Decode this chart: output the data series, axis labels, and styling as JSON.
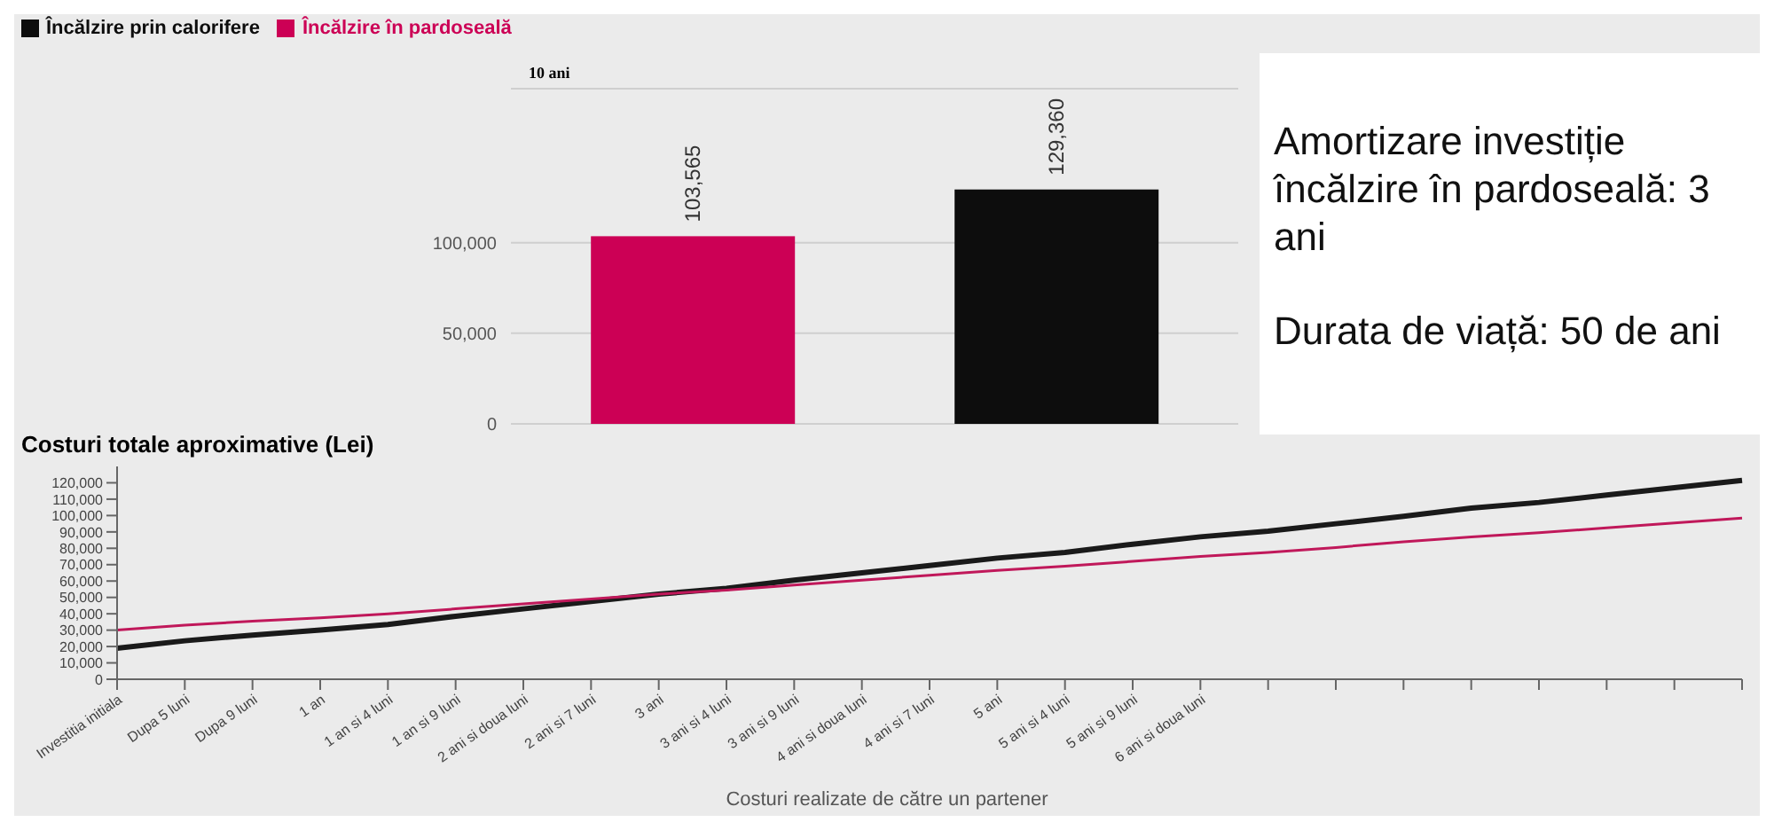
{
  "chart_data": [
    {
      "type": "bar",
      "title": "10 ani",
      "categories": [
        null,
        null
      ],
      "stacked": true,
      "grid": "y",
      "legend": "top left",
      "series": [
        {
          "name": "Încălzire prin calorifere",
          "color": "#0d0d0d",
          "values": [
            null,
            129360
          ],
          "value_labels": [
            null,
            "129,360"
          ]
        },
        {
          "name": "Încălzire în pardoseală",
          "color": "#cc0055",
          "values": [
            103565,
            null
          ],
          "value_labels": [
            "103,565",
            null
          ]
        }
      ],
      "ylim": [
        0,
        185000
      ],
      "yticks": [
        {
          "value": 0,
          "label": "0"
        },
        {
          "value": 50000,
          "label": "50,000"
        },
        {
          "value": 100000,
          "label": "100,000"
        }
      ]
    },
    {
      "type": "line",
      "title": "Costuri totale aproximative (Lei)",
      "xlabel": "Costuri realizate de către un partener",
      "categories": [
        "Investitia initiala",
        "Dupa 5 luni",
        "Dupa 9 luni",
        "1 an",
        "1 an si 4 luni",
        "1 an si 9 luni",
        "2 ani si doua luni",
        "2 ani si 7 luni",
        "3 ani",
        "3 ani si 4 luni",
        "3 ani si 9 luni",
        "4 ani si doua luni",
        "4 ani si 7 luni",
        "5 ani",
        "5 ani si 4 luni",
        "5 ani si 9 luni",
        "6 ani si doua luni",
        null,
        null,
        null,
        null,
        null,
        null,
        null,
        null
      ],
      "series": [
        {
          "color": "#1a1a1a",
          "values": [
            19000,
            23500,
            27000,
            30000,
            33500,
            38500,
            43000,
            47500,
            52000,
            55500,
            60500,
            65000,
            69500,
            74000,
            77500,
            82500,
            87000,
            90500,
            95000,
            99500,
            104500,
            108000,
            112500,
            117000,
            121500
          ]
        },
        {
          "color": "#c0185a",
          "values": [
            30000,
            33000,
            35500,
            37500,
            40000,
            43000,
            46000,
            49000,
            52000,
            54500,
            57500,
            60500,
            63500,
            66500,
            69000,
            72000,
            75000,
            77500,
            80500,
            84000,
            87000,
            89500,
            92500,
            95500,
            98500
          ]
        }
      ],
      "ylim": [
        0,
        130000
      ],
      "yticks": [
        {
          "value": 0,
          "label": "0"
        },
        {
          "value": 10000,
          "label": "10,000"
        },
        {
          "value": 20000,
          "label": "20,000"
        },
        {
          "value": 30000,
          "label": "30,000"
        },
        {
          "value": 40000,
          "label": "40,000"
        },
        {
          "value": 50000,
          "label": "50,000"
        },
        {
          "value": 60000,
          "label": "60,000"
        },
        {
          "value": 70000,
          "label": "70,000"
        },
        {
          "value": 80000,
          "label": "80,000"
        },
        {
          "value": 90000,
          "label": "90,000"
        },
        {
          "value": 100000,
          "label": "100,000"
        },
        {
          "value": 110000,
          "label": "110,000"
        },
        {
          "value": 120000,
          "label": "120,000"
        }
      ]
    },
    {
      "type": "other",
      "annotations": [
        "Amortizare investiție încălzire în pardoseală: 3 ani",
        "Durata de viață: 50 de ani"
      ]
    }
  ]
}
